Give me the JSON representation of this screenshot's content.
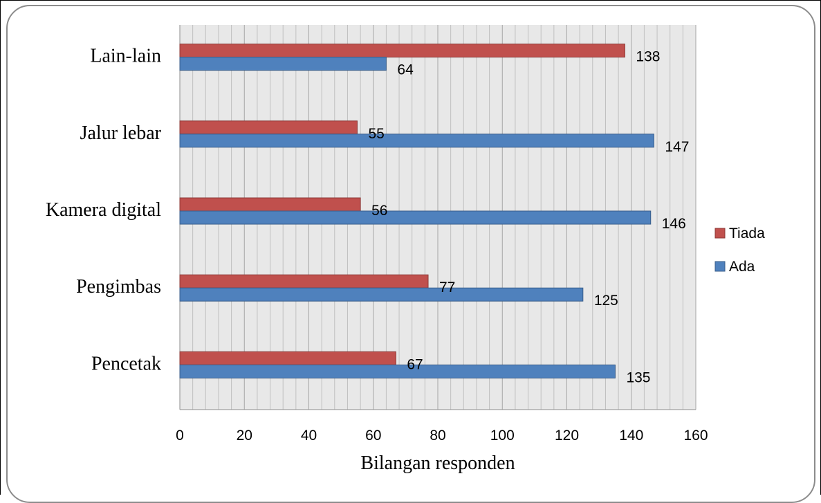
{
  "chart_data": {
    "type": "bar",
    "orientation": "horizontal",
    "categories": [
      "Lain-lain",
      "Jalur lebar",
      "Kamera digital",
      "Pengimbas",
      "Pencetak"
    ],
    "series": [
      {
        "name": "Tiada",
        "color": "#c0504d",
        "values": [
          138,
          55,
          56,
          77,
          67
        ]
      },
      {
        "name": "Ada",
        "color": "#4f81bd",
        "values": [
          64,
          147,
          146,
          125,
          135
        ]
      }
    ],
    "xlabel": "Bilangan responden",
    "xlim": [
      0,
      160
    ],
    "xticks": [
      "0",
      "20",
      "40",
      "60",
      "80",
      "100",
      "120",
      "140",
      "160"
    ],
    "grid": "vertical",
    "legend_position": "right"
  }
}
